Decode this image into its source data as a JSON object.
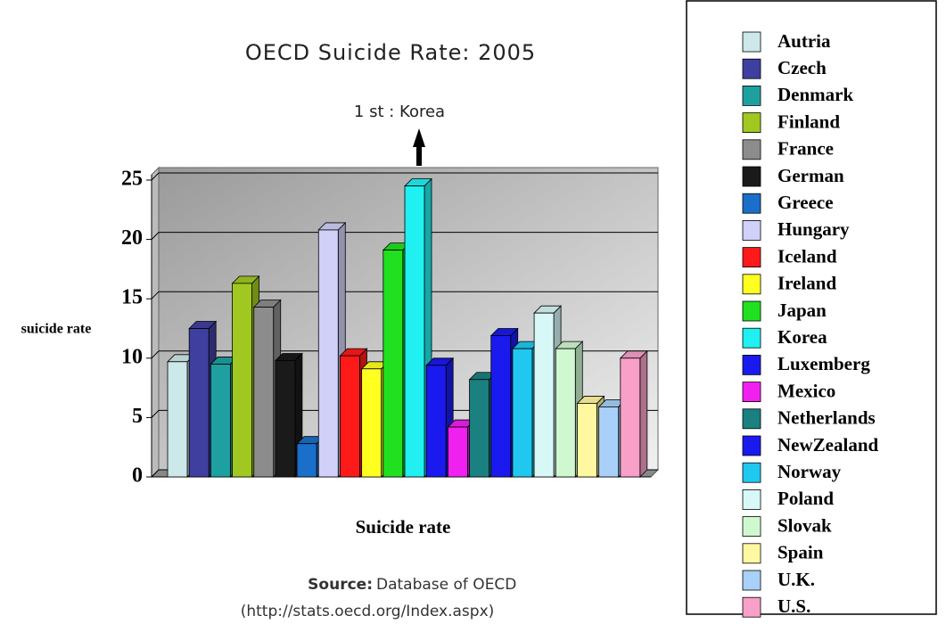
{
  "chart_data": {
    "type": "bar3d",
    "title": "OECD Suicide Rate: 2005",
    "annotation": "1 st : Korea",
    "ylabel": "suicide rate",
    "xlabel": "Suicide rate",
    "source_label": "Source:",
    "source_text": "Database of OECD",
    "source_url": "(http://stats.oecd.org/Index.aspx)",
    "ylim": [
      0,
      25
    ],
    "yticks": [
      0,
      5,
      10,
      15,
      20,
      25
    ],
    "grid": true,
    "legend": "right",
    "series": [
      {
        "name": "Autria",
        "color": "#cce8e8",
        "values": [
          9.7
        ]
      },
      {
        "name": "Czech",
        "color": "#3f3f9f",
        "values": [
          12.5
        ]
      },
      {
        "name": "Denmark",
        "color": "#1fa0a0",
        "values": [
          9.5
        ]
      },
      {
        "name": "Finland",
        "color": "#a0c820",
        "values": [
          16.3
        ]
      },
      {
        "name": "France",
        "color": "#8c8c8c",
        "values": [
          14.3
        ]
      },
      {
        "name": "German",
        "color": "#1a1a1a",
        "values": [
          9.8
        ]
      },
      {
        "name": "Greece",
        "color": "#1a6fc8",
        "values": [
          2.8
        ]
      },
      {
        "name": "Hungary",
        "color": "#d0d0f8",
        "values": [
          20.8
        ]
      },
      {
        "name": "Iceland",
        "color": "#ff1a1a",
        "values": [
          10.2
        ]
      },
      {
        "name": "Ireland",
        "color": "#ffff20",
        "values": [
          9.1
        ]
      },
      {
        "name": "Japan",
        "color": "#20e020",
        "values": [
          19.1
        ]
      },
      {
        "name": "Korea",
        "color": "#20f0f0",
        "values": [
          24.5
        ]
      },
      {
        "name": "Luxemberg",
        "color": "#1a1aee",
        "values": [
          9.4
        ]
      },
      {
        "name": "Mexico",
        "color": "#f020f0",
        "values": [
          4.2
        ]
      },
      {
        "name": "Netherlands",
        "color": "#1a8080",
        "values": [
          8.2
        ]
      },
      {
        "name": "NewZealand",
        "color": "#1a1aee",
        "values": [
          11.9
        ]
      },
      {
        "name": "Norway",
        "color": "#20c8f0",
        "values": [
          10.8
        ]
      },
      {
        "name": "Poland",
        "color": "#d8f8f8",
        "values": [
          13.8
        ]
      },
      {
        "name": "Slovak",
        "color": "#d0f8d0",
        "values": [
          10.8
        ]
      },
      {
        "name": "Spain",
        "color": "#fff8a0",
        "values": [
          6.2
        ]
      },
      {
        "name": "U.K.",
        "color": "#a8d0f8",
        "values": [
          5.9
        ]
      },
      {
        "name": "U.S.",
        "color": "#f8a0c8",
        "values": [
          10.0
        ]
      }
    ]
  }
}
